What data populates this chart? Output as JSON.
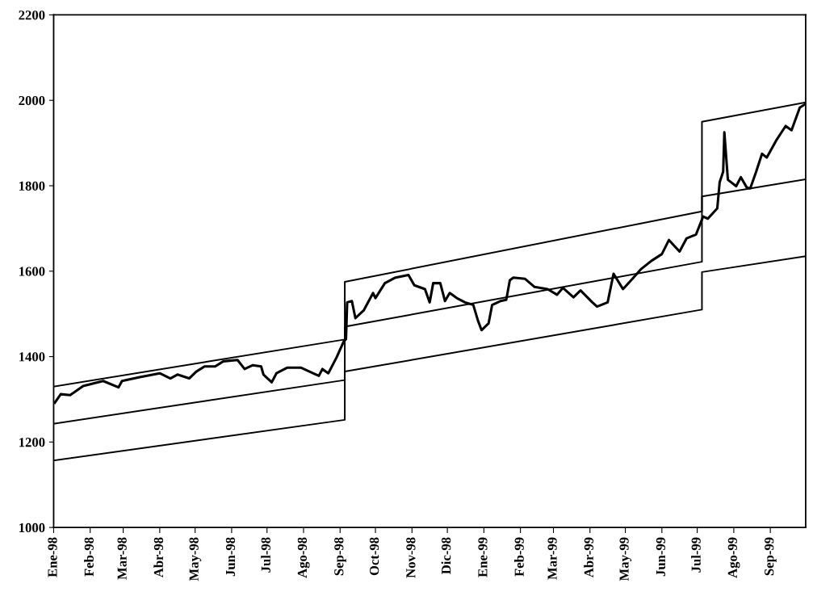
{
  "chart_data": {
    "type": "line",
    "xlim": [
      "1998-01-01",
      "1999-10-01"
    ],
    "ylim": [
      1000,
      2200
    ],
    "yticks": [
      1000,
      1200,
      1400,
      1600,
      1800,
      2000,
      2200
    ],
    "xticks": [
      {
        "value": "1998-01-01",
        "label": "Ene-98"
      },
      {
        "value": "1998-02-01",
        "label": "Feb-98"
      },
      {
        "value": "1998-03-01",
        "label": "Mar-98"
      },
      {
        "value": "1998-04-01",
        "label": "Abr-98"
      },
      {
        "value": "1998-05-01",
        "label": "May-98"
      },
      {
        "value": "1998-06-01",
        "label": "Jun-98"
      },
      {
        "value": "1998-07-01",
        "label": "Jul-98"
      },
      {
        "value": "1998-08-01",
        "label": "Ago-98"
      },
      {
        "value": "1998-09-01",
        "label": "Sep-98"
      },
      {
        "value": "1998-10-01",
        "label": "Oct-98"
      },
      {
        "value": "1998-11-01",
        "label": "Nov-98"
      },
      {
        "value": "1998-12-01",
        "label": "Dic-98"
      },
      {
        "value": "1999-01-01",
        "label": "Ene-99"
      },
      {
        "value": "1999-02-01",
        "label": "Feb-99"
      },
      {
        "value": "1999-03-01",
        "label": "Mar-99"
      },
      {
        "value": "1999-04-01",
        "label": "Abr-99"
      },
      {
        "value": "1999-05-01",
        "label": "May-99"
      },
      {
        "value": "1999-06-01",
        "label": "Jun-99"
      },
      {
        "value": "1999-07-01",
        "label": "Jul-99"
      },
      {
        "value": "1999-08-01",
        "label": "Ago-99"
      },
      {
        "value": "1999-09-01",
        "label": "Sep-99"
      }
    ],
    "grid": false,
    "marker": "none",
    "line_style": "solid",
    "series": [
      {
        "color": "#000000",
        "x": [
          "1998-01-01",
          "1998-09-05",
          "1998-09-05",
          "1999-07-05",
          "1999-07-05",
          "1999-10-01"
        ],
        "values": [
          1330,
          1440,
          1575,
          1740,
          1950,
          1995
        ]
      },
      {
        "color": "#000000",
        "x": [
          "1998-01-01",
          "1998-09-05",
          "1998-09-05",
          "1999-07-05",
          "1999-07-05",
          "1999-10-01"
        ],
        "values": [
          1243,
          1345,
          1470,
          1622,
          1775,
          1815
        ]
      },
      {
        "color": "#000000",
        "x": [
          "1998-01-01",
          "1998-09-05",
          "1998-09-05",
          "1999-07-05",
          "1999-07-05",
          "1999-10-01"
        ],
        "values": [
          1157,
          1252,
          1365,
          1510,
          1598,
          1635
        ]
      },
      {
        "color": "#000000",
        "x": [
          "1998-01-02",
          "1998-01-07",
          "1998-01-15",
          "1998-01-26",
          "1998-02-12",
          "1998-02-25",
          "1998-02-28",
          "1998-03-15",
          "1998-04-01",
          "1998-04-10",
          "1998-04-16",
          "1998-04-26",
          "1998-05-02",
          "1998-05-09",
          "1998-05-18",
          "1998-05-25",
          "1998-06-06",
          "1998-06-12",
          "1998-06-19",
          "1998-06-26",
          "1998-06-28",
          "1998-07-05",
          "1998-07-09",
          "1998-07-18",
          "1998-07-30",
          "1998-08-09",
          "1998-08-14",
          "1998-08-17",
          "1998-08-22",
          "1998-08-29",
          "1998-09-04",
          "1998-09-06",
          "1998-09-07",
          "1998-09-11",
          "1998-09-14",
          "1998-09-21",
          "1998-09-29",
          "1998-10-01",
          "1998-10-09",
          "1998-10-18",
          "1998-10-29",
          "1998-11-03",
          "1998-11-12",
          "1998-11-16",
          "1998-11-19",
          "1998-11-25",
          "1998-11-29",
          "1998-12-03",
          "1998-12-09",
          "1998-12-16",
          "1998-12-23",
          "1998-12-27",
          "1998-12-30",
          "1999-01-05",
          "1999-01-08",
          "1999-01-15",
          "1999-01-20",
          "1999-01-23",
          "1999-01-26",
          "1999-02-05",
          "1999-02-13",
          "1999-02-24",
          "1999-03-04",
          "1999-03-09",
          "1999-03-18",
          "1999-03-24",
          "1999-04-03",
          "1999-04-07",
          "1999-04-16",
          "1999-04-21",
          "1999-04-29",
          "1999-05-07",
          "1999-05-14",
          "1999-05-23",
          "1999-06-01",
          "1999-06-07",
          "1999-06-16",
          "1999-06-22",
          "1999-06-30",
          "1999-07-06",
          "1999-07-10",
          "1999-07-18",
          "1999-07-20",
          "1999-07-23",
          "1999-07-24",
          "1999-07-27",
          "1999-08-03",
          "1999-08-07",
          "1999-08-12",
          "1999-08-15",
          "1999-08-20",
          "1999-08-25",
          "1999-08-29",
          "1999-09-06",
          "1999-09-14",
          "1999-09-19",
          "1999-09-26",
          "1999-09-30"
        ],
        "values": [
          1292,
          1312,
          1310,
          1331,
          1343,
          1328,
          1343,
          1352,
          1361,
          1349,
          1358,
          1349,
          1365,
          1377,
          1377,
          1389,
          1392,
          1371,
          1380,
          1377,
          1358,
          1340,
          1361,
          1374,
          1374,
          1361,
          1355,
          1371,
          1361,
          1398,
          1435,
          1441,
          1527,
          1530,
          1490,
          1508,
          1549,
          1537,
          1572,
          1585,
          1591,
          1567,
          1558,
          1527,
          1572,
          1572,
          1530,
          1549,
          1537,
          1527,
          1521,
          1484,
          1462,
          1478,
          1521,
          1530,
          1533,
          1579,
          1585,
          1582,
          1563,
          1558,
          1545,
          1561,
          1539,
          1555,
          1527,
          1517,
          1527,
          1594,
          1558,
          1582,
          1604,
          1624,
          1640,
          1673,
          1646,
          1677,
          1686,
          1728,
          1723,
          1747,
          1808,
          1833,
          1925,
          1814,
          1799,
          1820,
          1796,
          1794,
          1833,
          1875,
          1866,
          1906,
          1940,
          1930,
          1983,
          1990
        ]
      }
    ]
  }
}
